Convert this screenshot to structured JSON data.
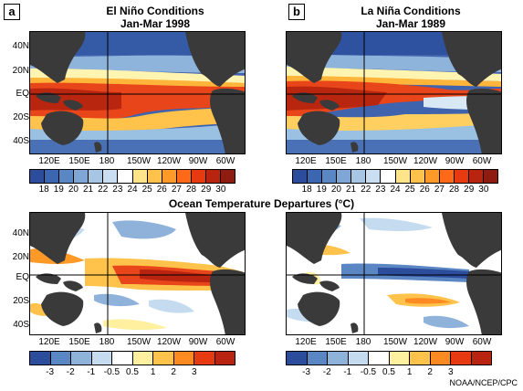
{
  "panels": {
    "a": {
      "letter": "a",
      "title_line1": "El Niño Conditions",
      "title_line2": "Jan-Mar 1998"
    },
    "b": {
      "letter": "b",
      "title_line1": "La Niña Conditions",
      "title_line2": "Jan-Mar 1989"
    }
  },
  "latitude_labels": [
    "40N",
    "20N",
    "EQ",
    "20S",
    "40S"
  ],
  "longitude_labels": [
    "120E",
    "150E",
    "180",
    "150W",
    "120W",
    "90W",
    "60W"
  ],
  "temperature_scale": {
    "ticks": [
      "18",
      "19",
      "20",
      "21",
      "22",
      "23",
      "24",
      "25",
      "26",
      "27",
      "28",
      "29",
      "30"
    ],
    "colors": [
      "#2c4d9c",
      "#3d66b0",
      "#5b86c4",
      "#7fa6d4",
      "#a7c6e4",
      "#c9def0",
      "#ffffff",
      "#ffe48a",
      "#ffc24a",
      "#ff9a28",
      "#ff6a18",
      "#e83a10",
      "#b82410",
      "#8e1c10"
    ]
  },
  "anomaly_scale": {
    "ticks": [
      "-3",
      "-2",
      "-1",
      "-0.5",
      "0.5",
      "1",
      "2",
      "3"
    ],
    "colors": [
      "#2c4d9c",
      "#5b86c4",
      "#8fb2db",
      "#c5dbef",
      "#ffffff",
      "#fff0a0",
      "#ffc24a",
      "#ff8a22",
      "#e83a10",
      "#b82410"
    ]
  },
  "center_title": "Ocean Temperature Departures (°C)",
  "credit": "NOAA/NCEP/CPC",
  "colors": {
    "land": "#3a3a3a",
    "ocean_cold": "#4a6fb3",
    "ocean_warm": "#e8451a"
  }
}
